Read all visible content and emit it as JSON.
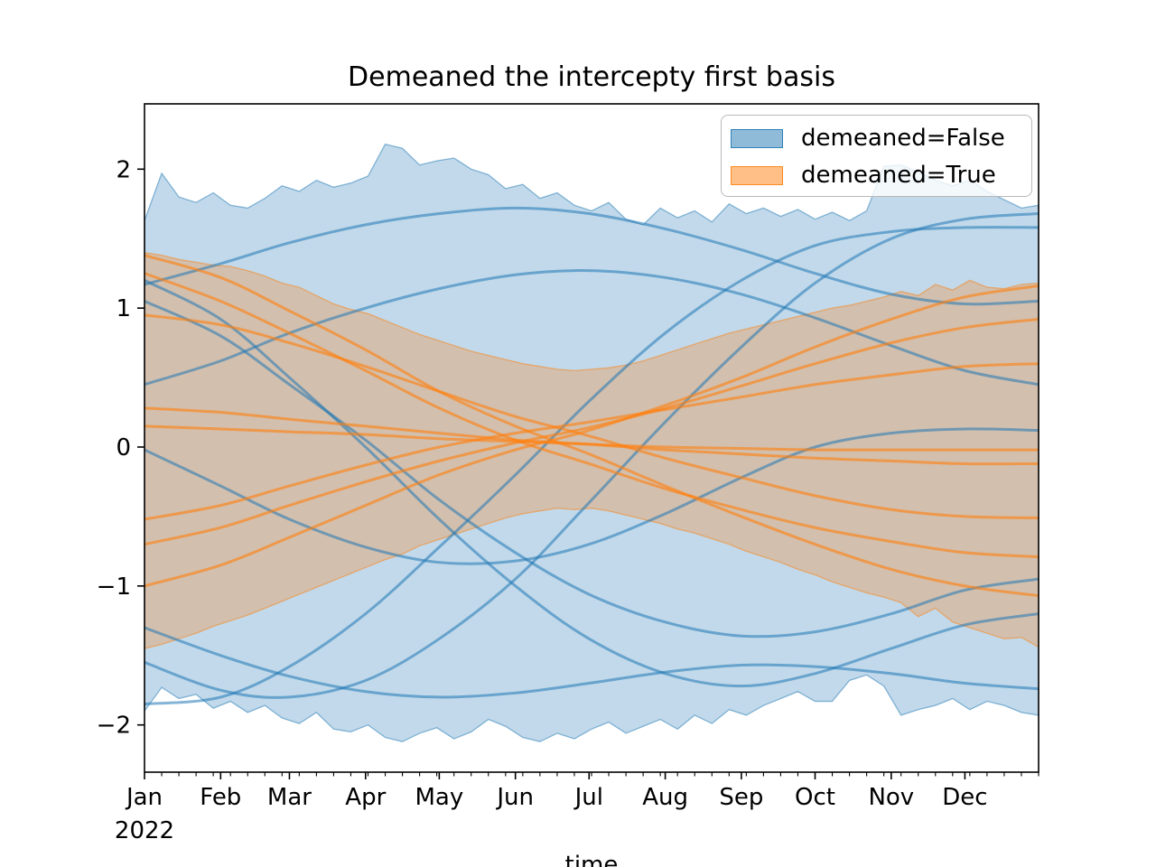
{
  "figure": {
    "title": "Demeaned the intercepty first basis"
  },
  "legend": {
    "items": [
      {
        "label": "demeaned=False",
        "color": "#1f77b4"
      },
      {
        "label": "demeaned=True",
        "color": "#ff7f0e"
      }
    ]
  },
  "chart_data": {
    "type": "line",
    "title": "Demeaned the intercepty first basis",
    "xlabel": "time",
    "ylabel": "",
    "year_label": "2022",
    "x_unit": "day_of_year_2022",
    "x_range": [
      0,
      364
    ],
    "y_range": [
      -2.34,
      2.47
    ],
    "grid": false,
    "legend_position": "upper right",
    "x_ticks": [
      {
        "day": 0,
        "label": "Jan"
      },
      {
        "day": 31,
        "label": "Feb"
      },
      {
        "day": 59,
        "label": "Mar"
      },
      {
        "day": 90,
        "label": "Apr"
      },
      {
        "day": 120,
        "label": "May"
      },
      {
        "day": 151,
        "label": "Jun"
      },
      {
        "day": 181,
        "label": "Jul"
      },
      {
        "day": 212,
        "label": "Aug"
      },
      {
        "day": 243,
        "label": "Sep"
      },
      {
        "day": 273,
        "label": "Oct"
      },
      {
        "day": 304,
        "label": "Nov"
      },
      {
        "day": 334,
        "label": "Dec"
      }
    ],
    "minor_tick_step_days": 7,
    "y_ticks": [
      {
        "value": 2,
        "label": "2"
      },
      {
        "value": 1,
        "label": "1"
      },
      {
        "value": 0,
        "label": "0"
      },
      {
        "value": -1,
        "label": "−1"
      },
      {
        "value": -2,
        "label": "−2"
      }
    ],
    "band_x": {
      "start_day": 0,
      "step_days": 7
    },
    "line_days": [
      0,
      31,
      59,
      90,
      120,
      151,
      181,
      212,
      243,
      273,
      304,
      334,
      364
    ],
    "groups": [
      {
        "name": "demeaned=False",
        "color": "#1f77b4",
        "fill_alpha": 0.28,
        "line_alpha": 0.55,
        "band": {
          "upper": [
            1.63,
            1.97,
            1.8,
            1.76,
            1.83,
            1.74,
            1.72,
            1.79,
            1.88,
            1.84,
            1.92,
            1.87,
            1.9,
            1.95,
            2.18,
            2.15,
            2.03,
            2.06,
            2.08,
            2.0,
            1.96,
            1.86,
            1.89,
            1.79,
            1.83,
            1.74,
            1.7,
            1.76,
            1.64,
            1.6,
            1.72,
            1.65,
            1.7,
            1.62,
            1.75,
            1.68,
            1.72,
            1.66,
            1.71,
            1.64,
            1.69,
            1.63,
            1.7,
            2.02,
            2.03,
            1.98,
            1.92,
            1.88,
            1.92,
            1.84,
            1.78,
            1.72,
            1.74
          ],
          "lower": [
            -1.9,
            -1.73,
            -1.81,
            -1.78,
            -1.88,
            -1.83,
            -1.91,
            -1.86,
            -1.95,
            -1.99,
            -1.91,
            -2.03,
            -2.05,
            -2.0,
            -2.09,
            -2.12,
            -2.06,
            -2.02,
            -2.1,
            -2.05,
            -1.96,
            -2.01,
            -2.09,
            -2.12,
            -2.06,
            -2.1,
            -2.03,
            -1.98,
            -2.06,
            -2.01,
            -1.96,
            -2.03,
            -1.93,
            -1.99,
            -1.89,
            -1.93,
            -1.86,
            -1.81,
            -1.76,
            -1.83,
            -1.83,
            -1.68,
            -1.64,
            -1.72,
            -1.93,
            -1.89,
            -1.86,
            -1.81,
            -1.89,
            -1.83,
            -1.86,
            -1.91,
            -1.93
          ]
        },
        "lines": [
          [
            1.17,
            1.32,
            1.47,
            1.6,
            1.68,
            1.72,
            1.68,
            1.57,
            1.42,
            1.25,
            1.1,
            1.03,
            1.05
          ],
          [
            -1.55,
            -1.75,
            -1.8,
            -1.68,
            -1.38,
            -0.95,
            -0.4,
            0.18,
            0.72,
            1.18,
            1.5,
            1.64,
            1.68
          ],
          [
            0.45,
            0.62,
            0.82,
            1.0,
            1.14,
            1.24,
            1.27,
            1.22,
            1.1,
            0.93,
            0.73,
            0.55,
            0.45
          ],
          [
            1.2,
            0.92,
            0.5,
            0.0,
            -0.52,
            -1.0,
            -1.38,
            -1.63,
            -1.72,
            -1.63,
            -1.45,
            -1.28,
            -1.2
          ],
          [
            1.05,
            0.8,
            0.45,
            0.05,
            -0.38,
            -0.76,
            -1.06,
            -1.26,
            -1.36,
            -1.33,
            -1.2,
            -1.03,
            -0.95
          ],
          [
            -0.02,
            -0.28,
            -0.52,
            -0.72,
            -0.83,
            -0.82,
            -0.7,
            -0.48,
            -0.22,
            0.0,
            0.1,
            0.13,
            0.12
          ],
          [
            -1.85,
            -1.8,
            -1.58,
            -1.2,
            -0.72,
            -0.2,
            0.33,
            0.82,
            1.2,
            1.45,
            1.55,
            1.58,
            1.58
          ],
          [
            -1.3,
            -1.5,
            -1.65,
            -1.76,
            -1.8,
            -1.77,
            -1.7,
            -1.62,
            -1.57,
            -1.58,
            -1.63,
            -1.7,
            -1.74
          ]
        ]
      },
      {
        "name": "demeaned=True",
        "color": "#ff7f0e",
        "fill_alpha": 0.28,
        "line_alpha": 0.62,
        "band": {
          "upper": [
            1.4,
            1.38,
            1.35,
            1.33,
            1.31,
            1.3,
            1.27,
            1.23,
            1.18,
            1.15,
            1.09,
            1.03,
            0.99,
            0.96,
            0.91,
            0.86,
            0.81,
            0.77,
            0.73,
            0.69,
            0.66,
            0.63,
            0.6,
            0.58,
            0.56,
            0.55,
            0.56,
            0.57,
            0.59,
            0.62,
            0.66,
            0.7,
            0.74,
            0.78,
            0.82,
            0.85,
            0.88,
            0.91,
            0.94,
            0.97,
            1.0,
            1.02,
            1.05,
            1.08,
            1.12,
            1.09,
            1.17,
            1.13,
            1.2,
            1.15,
            1.14,
            1.17,
            1.18
          ],
          "lower": [
            -1.45,
            -1.42,
            -1.38,
            -1.34,
            -1.29,
            -1.25,
            -1.21,
            -1.16,
            -1.11,
            -1.06,
            -1.01,
            -0.96,
            -0.91,
            -0.86,
            -0.81,
            -0.77,
            -0.71,
            -0.67,
            -0.63,
            -0.59,
            -0.55,
            -0.51,
            -0.48,
            -0.46,
            -0.44,
            -0.45,
            -0.44,
            -0.46,
            -0.49,
            -0.52,
            -0.55,
            -0.59,
            -0.62,
            -0.66,
            -0.7,
            -0.75,
            -0.79,
            -0.83,
            -0.88,
            -0.92,
            -0.97,
            -1.01,
            -1.05,
            -1.08,
            -1.12,
            -1.22,
            -1.16,
            -1.26,
            -1.3,
            -1.34,
            -1.38,
            -1.37,
            -1.44
          ]
        },
        "lines": [
          [
            1.38,
            1.22,
            0.98,
            0.7,
            0.4,
            0.15,
            -0.05,
            -0.28,
            -0.5,
            -0.7,
            -0.88,
            -1.0,
            -1.07
          ],
          [
            1.25,
            1.05,
            0.82,
            0.55,
            0.28,
            0.05,
            -0.12,
            -0.3,
            -0.45,
            -0.58,
            -0.68,
            -0.76,
            -0.79
          ],
          [
            0.95,
            0.88,
            0.75,
            0.58,
            0.4,
            0.22,
            0.08,
            -0.08,
            -0.22,
            -0.35,
            -0.45,
            -0.5,
            -0.51
          ],
          [
            0.28,
            0.25,
            0.2,
            0.15,
            0.1,
            0.05,
            0.02,
            -0.02,
            -0.05,
            -0.08,
            -0.1,
            -0.12,
            -0.12
          ],
          [
            0.15,
            0.13,
            0.11,
            0.09,
            0.06,
            0.04,
            0.02,
            0.0,
            -0.01,
            -0.02,
            -0.02,
            -0.02,
            -0.02
          ],
          [
            -0.52,
            -0.42,
            -0.28,
            -0.13,
            0.0,
            0.1,
            0.18,
            0.27,
            0.36,
            0.45,
            0.52,
            0.58,
            0.6
          ],
          [
            -0.7,
            -0.58,
            -0.42,
            -0.25,
            -0.1,
            0.03,
            0.14,
            0.28,
            0.44,
            0.6,
            0.75,
            0.86,
            0.92
          ],
          [
            -1.0,
            -0.85,
            -0.65,
            -0.42,
            -0.2,
            -0.02,
            0.12,
            0.3,
            0.5,
            0.72,
            0.92,
            1.08,
            1.16
          ]
        ]
      }
    ]
  }
}
